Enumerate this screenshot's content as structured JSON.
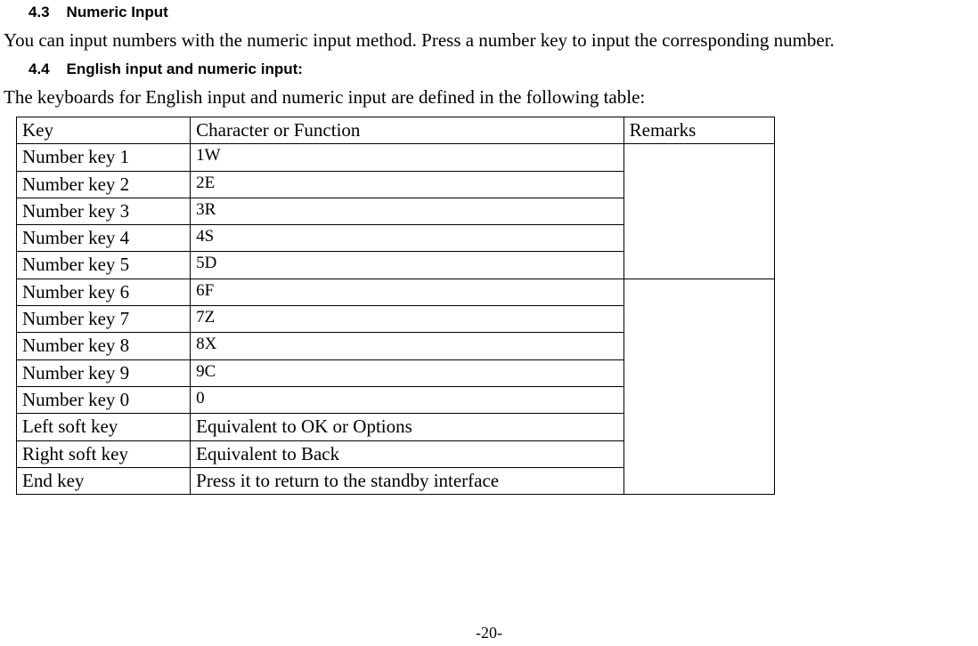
{
  "sections": {
    "s43": {
      "num": "4.3",
      "title": "Numeric Input"
    },
    "s44": {
      "num": "4.4",
      "title": "English input and numeric input:"
    }
  },
  "paragraphs": {
    "p43": "You can input numbers with the numeric input method. Press a number key to input the corresponding number.",
    "p44": "The keyboards for English input and numeric input are defined in the following table:"
  },
  "table": {
    "header": {
      "key": "Key",
      "fn": "Character or Function",
      "rem": "Remarks"
    },
    "rows": [
      {
        "key": "Number key 1",
        "fn": "1W"
      },
      {
        "key": "Number key 2",
        "fn": "2E"
      },
      {
        "key": "Number key 3",
        "fn": "3R"
      },
      {
        "key": "Number key 4",
        "fn": "4S"
      },
      {
        "key": "Number key 5",
        "fn": "5D"
      },
      {
        "key": "Number key 6",
        "fn": "6F"
      },
      {
        "key": "Number key 7",
        "fn": "7Z"
      },
      {
        "key": "Number key 8",
        "fn": "8X"
      },
      {
        "key": "Number key 9",
        "fn": "9C"
      },
      {
        "key": "Number key 0",
        "fn": "0"
      },
      {
        "key": "Left soft key",
        "fn": "Equivalent to OK or Options"
      },
      {
        "key": "Right soft key",
        "fn": "Equivalent to Back"
      },
      {
        "key": "End key",
        "fn": "Press it to return to the standby interface"
      }
    ]
  },
  "page_number": "-20-"
}
